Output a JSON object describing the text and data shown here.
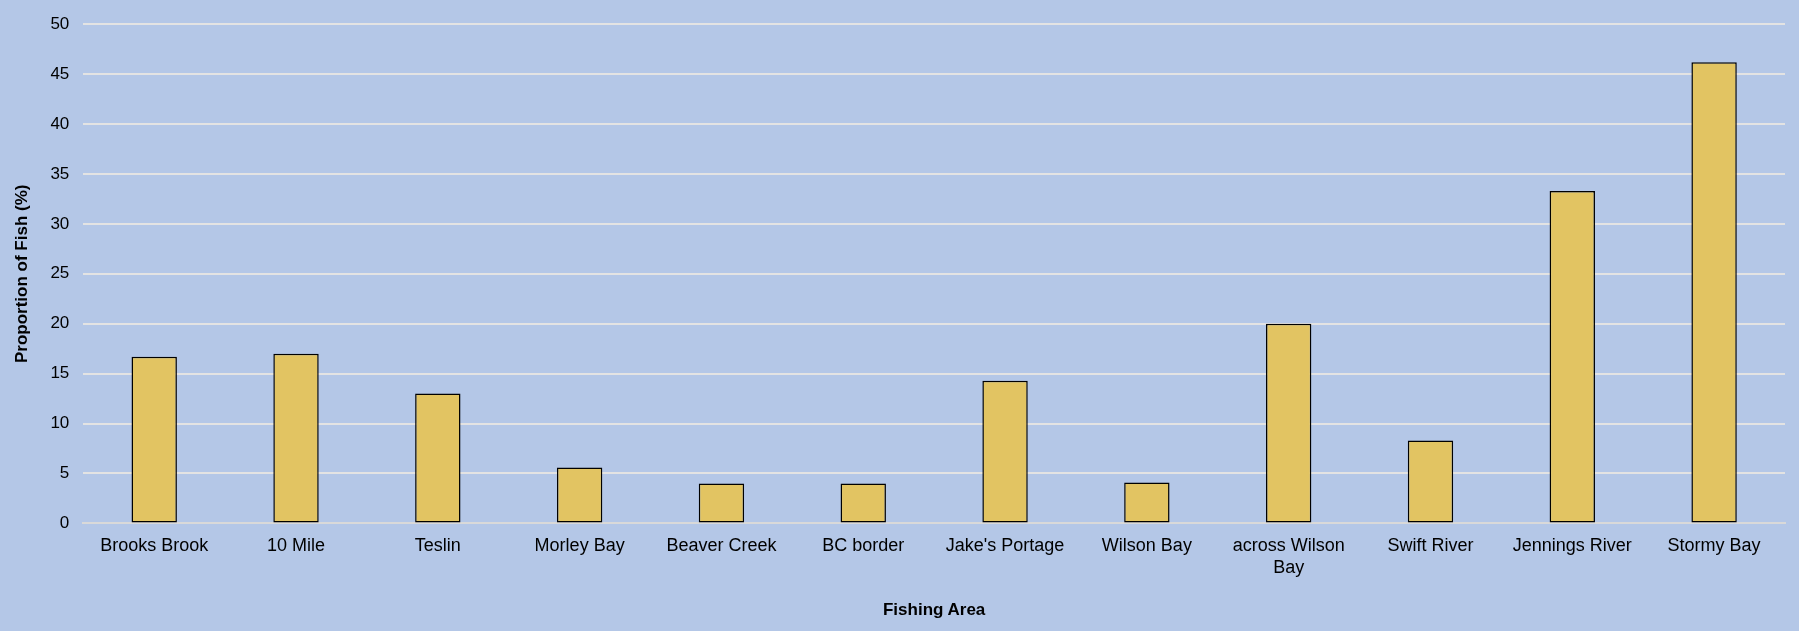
{
  "chart_data": {
    "type": "bar",
    "xlabel": "Fishing Area",
    "ylabel": "Proportion of Fish (%)",
    "categories": [
      "Brooks Brook",
      "10 Mile",
      "Teslin",
      "Morley Bay",
      "Beaver Creek",
      "BC border",
      "Jake's Portage",
      "Wilson Bay",
      "across Wilson Bay",
      "Swift River",
      "Jennings River",
      "Stormy Bay"
    ],
    "values": [
      16.7,
      17.0,
      13.0,
      5.6,
      4.0,
      4.0,
      14.3,
      4.1,
      20.0,
      8.3,
      33.3,
      46.2
    ],
    "color": "#e2c462",
    "ylim": [
      0,
      50
    ],
    "yticks": [
      0,
      5,
      10,
      15,
      20,
      25,
      30,
      35,
      40,
      45,
      50
    ],
    "grid": "y",
    "legend": false
  }
}
